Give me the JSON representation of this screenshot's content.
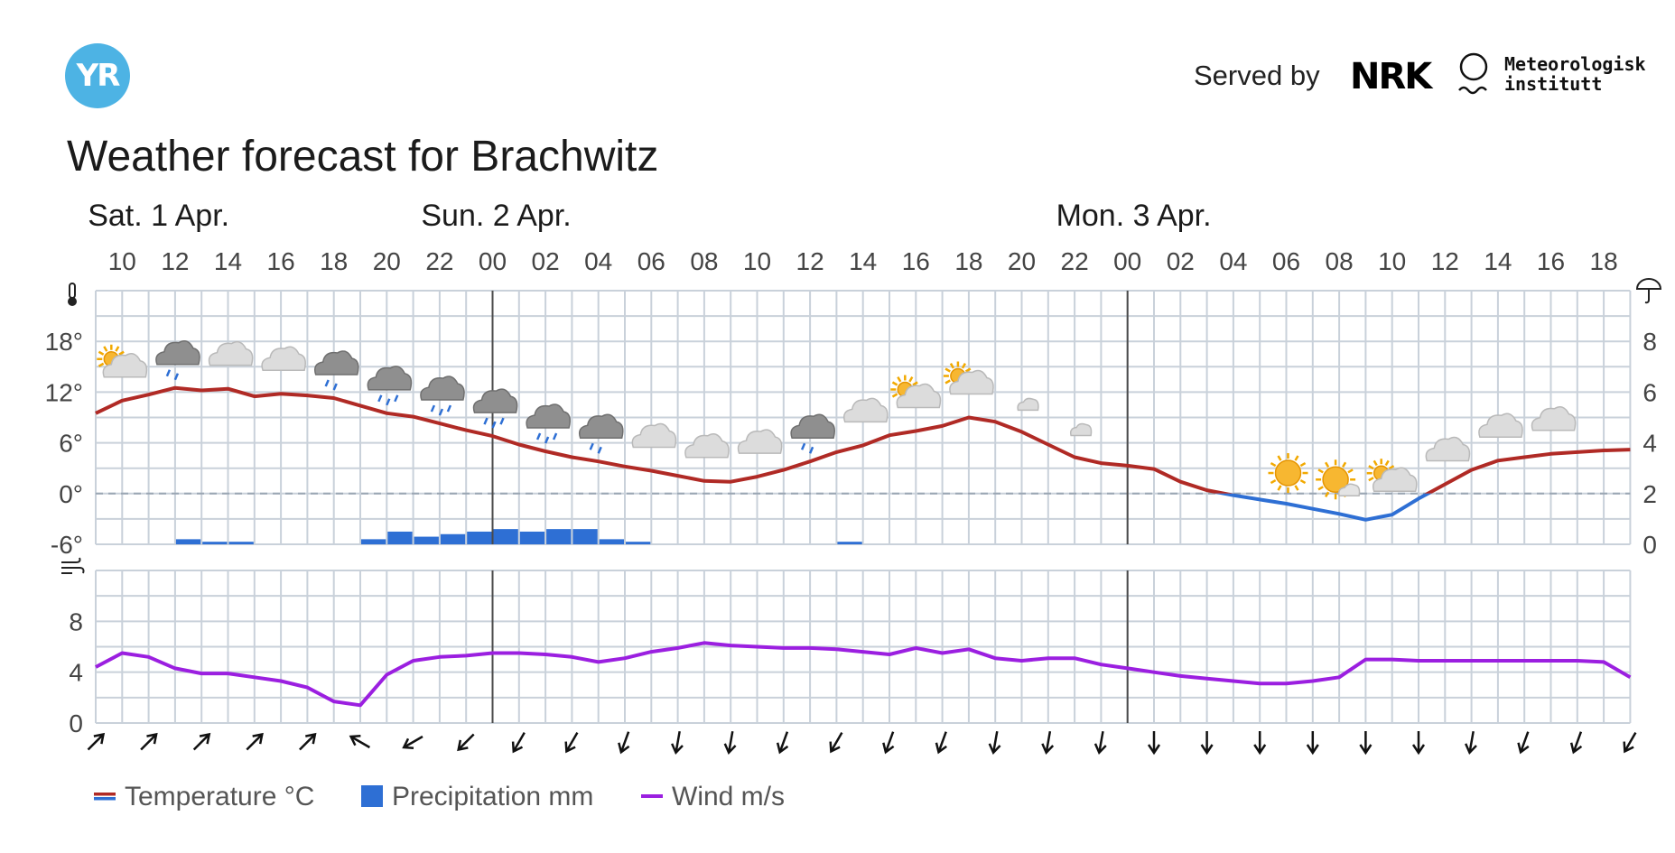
{
  "header": {
    "logo_text": "YR",
    "served_by": "Served by",
    "nrk_logo": "NRK",
    "met_logo_lines": [
      "Meteorologisk",
      "institutt"
    ],
    "title": "Weather forecast for Brachwitz"
  },
  "days": [
    "Sat. 1 Apr.",
    "Sun. 2 Apr.",
    "Mon. 3 Apr."
  ],
  "legend": [
    {
      "label": "Temperature °C",
      "kind": "temperature"
    },
    {
      "label": "Precipitation mm",
      "kind": "precipitation"
    },
    {
      "label": "Wind m/s",
      "kind": "wind"
    }
  ],
  "colors": {
    "temp_warm": "#b02a25",
    "temp_cold": "#2e6fd4",
    "precip": "#2e6fd4",
    "wind": "#9b1fe0",
    "grid": "#c9d1da",
    "axis_text": "#444444"
  },
  "icons": {
    "thermometer": "thermometer-icon",
    "umbrella": "umbrella-icon",
    "wind": "wind-icon"
  },
  "chart_data": [
    {
      "type": "line",
      "title": "",
      "x_hour_labels": [
        "10",
        "12",
        "14",
        "16",
        "18",
        "20",
        "22",
        "00",
        "02",
        "04",
        "06",
        "08",
        "10",
        "12",
        "14",
        "16",
        "18",
        "20",
        "22",
        "00",
        "02",
        "04",
        "06",
        "08",
        "10",
        "12",
        "14",
        "16",
        "18"
      ],
      "x_hours_from_sat_09": [
        0,
        1,
        2,
        3,
        4,
        5,
        6,
        7,
        8,
        9,
        10,
        11,
        12,
        13,
        14,
        15,
        16,
        17,
        18,
        19,
        20,
        21,
        22,
        23,
        24,
        25,
        26,
        27,
        28,
        29,
        30,
        31,
        32,
        33,
        34,
        35,
        36,
        37,
        38,
        39,
        40,
        41,
        42,
        43,
        44,
        45,
        46,
        47,
        48,
        49,
        50,
        51,
        52,
        53,
        54,
        55,
        56,
        57,
        58
      ],
      "y_left_ticks": [
        "18°",
        "12°",
        "6°",
        "0°",
        "-6°"
      ],
      "y_left_range": [
        -6,
        24
      ],
      "y_right_ticks": [
        "8",
        "6",
        "4",
        "2",
        "0"
      ],
      "y_right_range": [
        0,
        10
      ],
      "series": [
        {
          "name": "Temperature °C",
          "values": [
            9.5,
            11,
            11.7,
            12.5,
            12.2,
            12.4,
            11.5,
            11.8,
            11.6,
            11.3,
            10.4,
            9.5,
            9.1,
            8.3,
            7.5,
            6.8,
            5.8,
            5,
            4.3,
            3.8,
            3.2,
            2.7,
            2.1,
            1.5,
            1.4,
            2,
            2.8,
            3.8,
            4.9,
            5.7,
            6.9,
            7.4,
            8,
            9,
            8.5,
            7.3,
            5.8,
            4.3,
            3.6,
            3.3,
            2.9,
            1.4,
            0.4,
            -0.2,
            -0.7,
            -1.2,
            -1.8,
            -2.4,
            -3.1,
            -2.5,
            -0.6,
            1.1,
            2.8,
            3.9,
            4.3,
            4.7,
            4.9,
            5.1,
            5.2
          ]
        },
        {
          "name": "Precipitation mm",
          "bars": [
            {
              "hour": 3,
              "value": 0.2
            },
            {
              "hour": 4,
              "value": 0.1
            },
            {
              "hour": 5,
              "value": 0.1
            },
            {
              "hour": 10,
              "value": 0.2
            },
            {
              "hour": 11,
              "value": 0.5
            },
            {
              "hour": 12,
              "value": 0.3
            },
            {
              "hour": 13,
              "value": 0.4
            },
            {
              "hour": 14,
              "value": 0.5
            },
            {
              "hour": 15,
              "value": 0.6
            },
            {
              "hour": 16,
              "value": 0.5
            },
            {
              "hour": 17,
              "value": 0.6
            },
            {
              "hour": 18,
              "value": 0.6
            },
            {
              "hour": 19,
              "value": 0.2
            },
            {
              "hour": 20,
              "value": 0.1
            },
            {
              "hour": 28,
              "value": 0.1
            }
          ]
        }
      ],
      "weather_symbols": [
        {
          "hour": 1,
          "icon": "partly-cloudy-day-icon"
        },
        {
          "hour": 3,
          "icon": "cloud-light-rain-icon"
        },
        {
          "hour": 5,
          "icon": "cloud-icon"
        },
        {
          "hour": 7,
          "icon": "cloud-icon"
        },
        {
          "hour": 9,
          "icon": "cloud-light-rain-icon"
        },
        {
          "hour": 11,
          "icon": "cloud-rain-icon"
        },
        {
          "hour": 13,
          "icon": "cloud-rain-icon"
        },
        {
          "hour": 15,
          "icon": "cloud-rain-icon"
        },
        {
          "hour": 17,
          "icon": "cloud-rain-icon"
        },
        {
          "hour": 19,
          "icon": "cloud-light-rain-icon"
        },
        {
          "hour": 21,
          "icon": "cloud-icon"
        },
        {
          "hour": 23,
          "icon": "cloud-icon"
        },
        {
          "hour": 25,
          "icon": "cloud-icon"
        },
        {
          "hour": 27,
          "icon": "cloud-light-rain-icon"
        },
        {
          "hour": 29,
          "icon": "cloud-icon"
        },
        {
          "hour": 31,
          "icon": "partly-cloudy-day-icon"
        },
        {
          "hour": 33,
          "icon": "partly-cloudy-day-icon"
        },
        {
          "hour": 35,
          "icon": "partly-cloudy-night-icon"
        },
        {
          "hour": 37,
          "icon": "partly-cloudy-night-icon"
        },
        {
          "hour": 39,
          "icon": "moon-icon"
        },
        {
          "hour": 41,
          "icon": "moon-icon"
        },
        {
          "hour": 43,
          "icon": "moon-icon"
        },
        {
          "hour": 45,
          "icon": "sun-icon"
        },
        {
          "hour": 47,
          "icon": "partly-sunny-icon"
        },
        {
          "hour": 49,
          "icon": "partly-cloudy-day-icon"
        },
        {
          "hour": 51,
          "icon": "cloud-icon"
        },
        {
          "hour": 53,
          "icon": "cloud-icon"
        },
        {
          "hour": 55,
          "icon": "cloud-icon"
        }
      ]
    },
    {
      "type": "line",
      "title": "",
      "y_ticks": [
        "8",
        "4",
        "0"
      ],
      "y_range": [
        0,
        12
      ],
      "series": [
        {
          "name": "Wind m/s",
          "values": [
            4.4,
            5.5,
            5.2,
            4.3,
            3.9,
            3.9,
            3.6,
            3.3,
            2.8,
            1.7,
            1.4,
            3.8,
            4.9,
            5.2,
            5.3,
            5.5,
            5.5,
            5.4,
            5.2,
            4.8,
            5.1,
            5.6,
            5.9,
            6.3,
            6.1,
            6,
            5.9,
            5.9,
            5.8,
            5.6,
            5.4,
            5.9,
            5.5,
            5.8,
            5.1,
            4.9,
            5.1,
            5.1,
            4.6,
            4.3,
            4,
            3.7,
            3.5,
            3.3,
            3.1,
            3.1,
            3.3,
            3.6,
            5,
            5,
            4.9,
            4.9,
            4.9,
            4.9,
            4.9,
            4.9,
            4.9,
            4.8,
            3.6
          ]
        }
      ],
      "wind_direction_degrees": [
        45,
        45,
        45,
        45,
        45,
        300,
        240,
        225,
        210,
        210,
        200,
        190,
        190,
        200,
        210,
        200,
        200,
        190,
        190,
        190,
        180,
        180,
        180,
        180,
        180,
        180,
        190,
        200,
        200,
        210
      ]
    }
  ]
}
